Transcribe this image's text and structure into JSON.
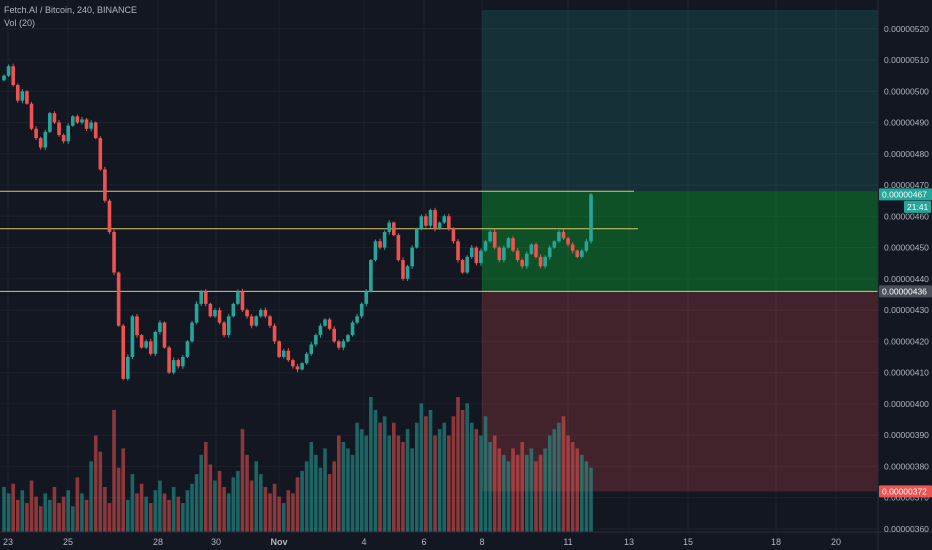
{
  "header": {
    "title": "Fetch.AI / Bitcoin, 240, BINANCE",
    "volume_label": "Vol (20)"
  },
  "chart_data": {
    "type": "candlestick",
    "symbol": "Fetch.AI / Bitcoin",
    "interval": "240",
    "exchange": "BINANCE",
    "ylim": [
      3.59e-06,
      5.26e-06
    ],
    "y_ticks": [
      "0.00000520",
      "0.00000510",
      "0.00000500",
      "0.00000490",
      "0.00000480",
      "0.00000470",
      "0.00000460",
      "0.00000450",
      "0.00000440",
      "0.00000430",
      "0.00000420",
      "0.00000410",
      "0.00000400",
      "0.00000390",
      "0.00000380",
      "0.00000370",
      "0.00000360"
    ],
    "x_ticks": [
      "23",
      "25",
      "28",
      "30",
      "Nov",
      "4",
      "6",
      "8",
      "11",
      "13",
      "15",
      "18",
      "20"
    ],
    "price_labels": [
      {
        "text": "0.00000467",
        "value": 4.67e-06,
        "color": "#26a69a"
      },
      {
        "text": "21:41",
        "value": 4.63e-06,
        "color": "#26a69a"
      },
      {
        "text": "0.00000436",
        "value": 4.36e-06,
        "color": "#4a4f5a"
      },
      {
        "text": "0.00000372",
        "value": 3.72e-06,
        "color": "#ef5350"
      }
    ],
    "horizontal_lines": [
      4.68e-06,
      4.56e-06,
      4.36e-06
    ],
    "position_zones": {
      "entry": 4.36e-06,
      "target": 5.26e-06,
      "stop": 3.72e-06
    },
    "closes": [
      5.05e-06,
      5.08e-06,
      5.02e-06,
      4.97e-06,
      5e-06,
      4.96e-06,
      4.88e-06,
      4.85e-06,
      4.82e-06,
      4.87e-06,
      4.93e-06,
      4.9e-06,
      4.86e-06,
      4.84e-06,
      4.89e-06,
      4.92e-06,
      4.9e-06,
      4.91e-06,
      4.88e-06,
      4.9e-06,
      4.85e-06,
      4.75e-06,
      4.65e-06,
      4.55e-06,
      4.42e-06,
      4.25e-06,
      4.08e-06,
      4.15e-06,
      4.28e-06,
      4.22e-06,
      4.18e-06,
      4.2e-06,
      4.16e-06,
      4.23e-06,
      4.26e-06,
      4.18e-06,
      4.1e-06,
      4.14e-06,
      4.12e-06,
      4.15e-06,
      4.2e-06,
      4.26e-06,
      4.32e-06,
      4.36e-06,
      4.32e-06,
      4.28e-06,
      4.3e-06,
      4.26e-06,
      4.22e-06,
      4.28e-06,
      4.32e-06,
      4.36e-06,
      4.3e-06,
      4.28e-06,
      4.25e-06,
      4.28e-06,
      4.3e-06,
      4.28e-06,
      4.25e-06,
      4.2e-06,
      4.15e-06,
      4.17e-06,
      4.14e-06,
      4.12e-06,
      4.11e-06,
      4.13e-06,
      4.16e-06,
      4.19e-06,
      4.22e-06,
      4.25e-06,
      4.27e-06,
      4.24e-06,
      4.2e-06,
      4.18e-06,
      4.2e-06,
      4.22e-06,
      4.26e-06,
      4.28e-06,
      4.32e-06,
      4.36e-06,
      4.46e-06,
      4.52e-06,
      4.5e-06,
      4.55e-06,
      4.58e-06,
      4.54e-06,
      4.46e-06,
      4.4e-06,
      4.44e-06,
      4.5e-06,
      4.56e-06,
      4.6e-06,
      4.57e-06,
      4.62e-06,
      4.56e-06,
      4.58e-06,
      4.6e-06,
      4.56e-06,
      4.52e-06,
      4.46e-06,
      4.42e-06,
      4.47e-06,
      4.5e-06,
      4.45e-06,
      4.49e-06,
      4.52e-06,
      4.55e-06,
      4.5e-06,
      4.46e-06,
      4.5e-06,
      4.53e-06,
      4.49e-06,
      4.46e-06,
      4.44e-06,
      4.48e-06,
      4.51e-06,
      4.47e-06,
      4.44e-06,
      4.47e-06,
      4.5e-06,
      4.52e-06,
      4.55e-06,
      4.53e-06,
      4.51e-06,
      4.49e-06,
      4.47e-06,
      4.49e-06,
      4.52e-06,
      4.67e-06
    ],
    "volumes": [
      14,
      12,
      15,
      10,
      13,
      9,
      16,
      11,
      8,
      12,
      10,
      14,
      9,
      11,
      13,
      8,
      17,
      12,
      10,
      22,
      30,
      25,
      14,
      9,
      38,
      20,
      26,
      10,
      18,
      12,
      15,
      11,
      9,
      13,
      16,
      12,
      10,
      14,
      11,
      9,
      13,
      15,
      18,
      24,
      28,
      21,
      16,
      19,
      14,
      12,
      17,
      19,
      32,
      24,
      16,
      22,
      18,
      14,
      12,
      15,
      11,
      9,
      13,
      12,
      17,
      19,
      22,
      28,
      24,
      20,
      26,
      18,
      22,
      30,
      28,
      26,
      24,
      34,
      32,
      30,
      42,
      38,
      34,
      36,
      30,
      34,
      30,
      28,
      32,
      26,
      34,
      40,
      36,
      38,
      30,
      32,
      34,
      30,
      36,
      42,
      38,
      40,
      34,
      32,
      30,
      36,
      28,
      30,
      26,
      24,
      22,
      26,
      24,
      28,
      24,
      26,
      22,
      24,
      26,
      30,
      32,
      34,
      36,
      30,
      28,
      26,
      24,
      22,
      20
    ]
  }
}
